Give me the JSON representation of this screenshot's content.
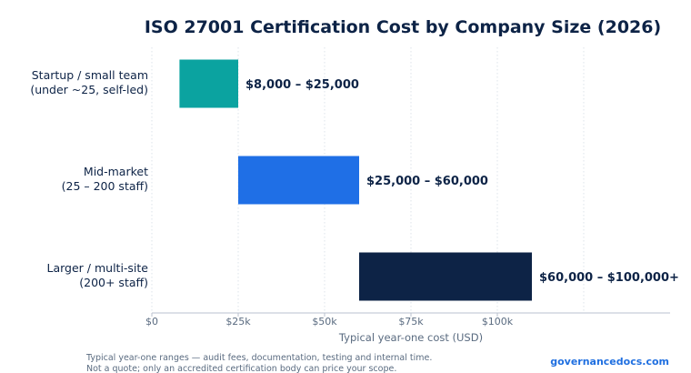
{
  "chart_data": {
    "type": "bar",
    "orientation": "horizontal",
    "floating": true,
    "title": "ISO 27001 Certification Cost by Company Size (2026)",
    "xlabel": "Typical year-one cost (USD)",
    "ylabel": "",
    "xlim": [
      0,
      150000
    ],
    "x_ticks": [
      {
        "value": 0,
        "label": "$0"
      },
      {
        "value": 25000,
        "label": "$25k"
      },
      {
        "value": 50000,
        "label": "$50k"
      },
      {
        "value": 75000,
        "label": "$75k"
      },
      {
        "value": 100000,
        "label": "$100k"
      }
    ],
    "grid": "vertical dotted",
    "categories": [
      {
        "lines": [
          "Startup / small team",
          "(under ~25, self-led)"
        ]
      },
      {
        "lines": [
          "Mid-market",
          "(25 – 200 staff)"
        ]
      },
      {
        "lines": [
          "Larger / multi-site",
          "(200+ staff)"
        ]
      }
    ],
    "bars": [
      {
        "low": 8000,
        "high": 25000,
        "label": "$8,000 – $25,000",
        "color": "#0ba3a0"
      },
      {
        "low": 25000,
        "high": 60000,
        "label": "$25,000 – $60,000",
        "color": "#1f6fe6"
      },
      {
        "low": 60000,
        "high": 110000,
        "label": "$60,000 – $100,000+",
        "color": "#0d2346"
      }
    ]
  },
  "footer": {
    "note_lines": [
      "Typical year-one ranges — audit fees, documentation, testing and internal time.",
      "Not a quote; only an accredited certification body can price your scope."
    ],
    "brand": "governancedocs.com"
  }
}
